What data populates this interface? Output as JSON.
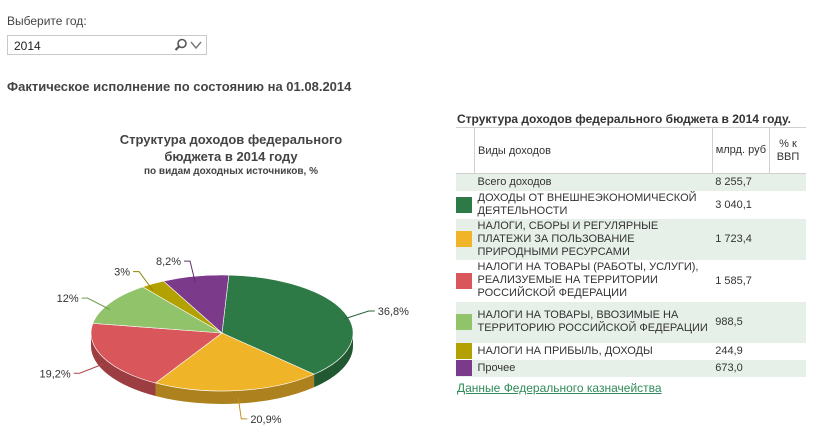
{
  "filter": {
    "label": "Выберите год:",
    "value": "2014"
  },
  "heading": "Фактическое исполнение по состоянию на 01.08.2014",
  "chart_data": {
    "type": "pie",
    "title": "Структура доходов федерального бюджета в 2014 году",
    "subtitle": "по видам доходных источников, %",
    "slices": [
      {
        "label": "ДОХОДЫ ОТ ВНЕШНЕЭКОНОМИЧЕСКОЙ ДЕЯТЕЛЬНОСТИ",
        "value": 36.8,
        "display": "36,8%",
        "color": "#2e7a46"
      },
      {
        "label": "НАЛОГИ, СБОРЫ И РЕГУЛЯРНЫЕ ПЛАТЕЖИ ЗА ПОЛЬЗОВАНИЕ ПРИРОДНЫМИ РЕСУРСАМИ",
        "value": 20.9,
        "display": "20,9%",
        "color": "#f0b429"
      },
      {
        "label": "НАЛОГИ НА ТОВАРЫ (РАБОТЫ, УСЛУГИ), РЕАЛИЗУЕМЫЕ НА ТЕРРИТОРИИ РОССИЙСКОЙ ФЕДЕРАЦИИ",
        "value": 19.2,
        "display": "19,2%",
        "color": "#d9565a"
      },
      {
        "label": "НАЛОГИ НА ТОВАРЫ, ВВОЗИМЫЕ НА ТЕРРИТОРИЮ РОССИЙСКОЙ ФЕДЕРАЦИИ",
        "value": 12,
        "display": "12%",
        "color": "#90c36a"
      },
      {
        "label": "НАЛОГИ НА ПРИБЫЛЬ, ДОХОДЫ",
        "value": 3,
        "display": "3%",
        "color": "#b3a100"
      },
      {
        "label": "Прочее",
        "value": 8.2,
        "display": "8,2%",
        "color": "#7b3a8a"
      }
    ]
  },
  "table": {
    "title": "Структура доходов федерального бюджета в 2014 году.",
    "col_name": "Виды доходов",
    "col_value": "млрд. руб",
    "col_pct": "% к ВВП",
    "total": {
      "name": "Всего доходов",
      "value": "8 255,7"
    },
    "rows": [
      {
        "name": "ДОХОДЫ ОТ ВНЕШНЕЭКОНОМИЧЕСКОЙ ДЕЯТЕЛЬНОСТИ",
        "value": "3 040,1",
        "color": "#2e7a46"
      },
      {
        "name": "НАЛОГИ, СБОРЫ И РЕГУЛЯРНЫЕ ПЛАТЕЖИ ЗА ПОЛЬЗОВАНИЕ ПРИРОДНЫМИ РЕСУРСАМИ",
        "value": "1 723,4",
        "color": "#f0b429"
      },
      {
        "name": "НАЛОГИ НА ТОВАРЫ (РАБОТЫ, УСЛУГИ), РЕАЛИЗУЕМЫЕ НА ТЕРРИТОРИИ РОССИЙСКОЙ ФЕДЕРАЦИИ",
        "value": "1 585,7",
        "color": "#d9565a"
      },
      {
        "name": "НАЛОГИ НА ТОВАРЫ, ВВОЗИМЫЕ НА ТЕРРИТОРИЮ РОССИЙСКОЙ ФЕДЕРАЦИИ",
        "value": "988,5",
        "color": "#90c36a"
      },
      {
        "name": "НАЛОГИ НА ПРИБЫЛЬ, ДОХОДЫ",
        "value": "244,9",
        "color": "#b3a100"
      },
      {
        "name": "Прочее",
        "value": "673,0",
        "color": "#7b3a8a"
      }
    ]
  },
  "source_link": "Данные Федерального казначейства"
}
